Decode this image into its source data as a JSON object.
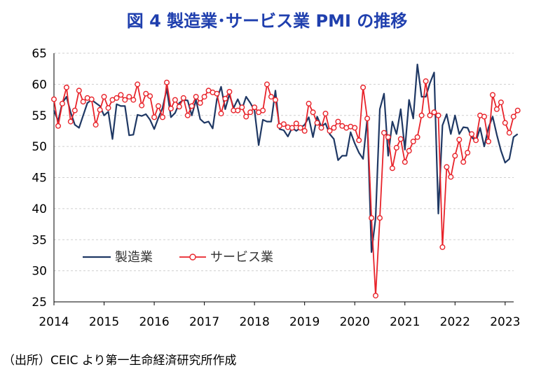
{
  "chart_data": {
    "type": "line",
    "title": "図 4  製造業･サービス業 PMI の推移",
    "source": "（出所）CEIC より第一生命経済研究所作成",
    "ylim": [
      25,
      65
    ],
    "yticks": [
      25,
      30,
      35,
      40,
      45,
      50,
      55,
      60,
      65
    ],
    "xlim": [
      2014.0,
      2023.17
    ],
    "xticks": [
      "2014",
      "2015",
      "2016",
      "2017",
      "2018",
      "2019",
      "2020",
      "2021",
      "2022",
      "2023"
    ],
    "grid": true,
    "legend": "bottom-left",
    "x_start": "2014-01",
    "series": [
      {
        "name": "製造業",
        "color": "#1f3864",
        "marker": "none",
        "values": [
          55.8,
          54.1,
          57.0,
          58.0,
          55.5,
          53.5,
          53.0,
          55.0,
          57.0,
          57.5,
          57.0,
          56.5,
          55.0,
          55.6,
          51.2,
          56.8,
          56.5,
          56.5,
          51.8,
          51.9,
          55.1,
          54.9,
          55.2,
          54.3,
          52.8,
          54.6,
          56.2,
          59.3,
          54.7,
          55.4,
          57.0,
          57.5,
          57.4,
          55.0,
          57.5,
          54.4,
          53.8,
          54.0,
          52.9,
          57.6,
          59.6,
          56.0,
          58.4,
          56.2,
          57.6,
          56.0,
          58.0,
          57.0,
          55.8,
          50.2,
          54.3,
          54.0,
          54.0,
          59.0,
          52.8,
          52.6,
          51.6,
          53.0,
          52.5,
          53.0,
          53.5,
          54.7,
          51.5,
          54.8,
          53.2,
          53.7,
          52.0,
          51.2,
          47.8,
          48.5,
          48.5,
          52.3,
          50.5,
          49.0,
          48.0,
          54.5,
          33.0,
          38.5,
          56.0,
          58.5,
          48.5,
          54.0,
          52.0,
          56.0,
          49.5,
          57.5,
          54.5,
          63.2,
          58.0,
          58.0,
          60.2,
          61.9,
          39.2,
          53.4,
          55.2,
          52.0,
          55.0,
          52.0,
          53.1,
          53.0,
          51.5,
          50.8,
          53.0,
          50.0,
          53.0,
          54.8,
          51.9,
          49.3,
          47.4,
          48.0,
          51.5,
          52.0
        ]
      },
      {
        "name": "サービス業",
        "color": "#e8232a",
        "marker": "circle",
        "values": [
          57.6,
          53.3,
          56.9,
          59.5,
          54.0,
          55.8,
          59.0,
          57.2,
          57.8,
          57.6,
          53.5,
          55.9,
          58.0,
          56.2,
          57.5,
          57.8,
          58.3,
          57.5,
          58.0,
          57.5,
          60.0,
          56.6,
          58.5,
          58.1,
          54.7,
          56.5,
          54.7,
          60.3,
          56.1,
          57.5,
          56.4,
          57.8,
          55.0,
          56.5,
          58.0,
          57.0,
          58.0,
          59.0,
          58.7,
          58.5,
          55.3,
          57.7,
          58.8,
          55.8,
          55.8,
          56.3,
          54.8,
          55.5,
          56.3,
          55.5,
          55.8,
          60.0,
          58.0,
          57.5,
          53.3,
          53.6,
          53.1,
          53.0,
          53.7,
          53.0,
          52.5,
          56.9,
          55.5,
          53.8,
          53.0,
          55.3,
          52.5,
          53.0,
          54.0,
          53.3,
          53.0,
          53.2,
          53.0,
          51.0,
          59.5,
          54.5,
          38.5,
          26.0,
          38.5,
          52.2,
          51.5,
          46.5,
          49.8,
          51.2,
          47.5,
          49.3,
          50.8,
          51.5,
          55.0,
          60.5,
          55.0,
          55.5,
          55.0,
          33.8,
          46.7,
          45.1,
          48.5,
          51.1,
          47.5,
          49.0,
          52.0,
          51.0,
          55.0,
          54.8,
          50.8,
          58.3,
          56.0,
          57.1,
          53.8,
          52.2,
          54.8,
          55.8
        ]
      }
    ]
  }
}
